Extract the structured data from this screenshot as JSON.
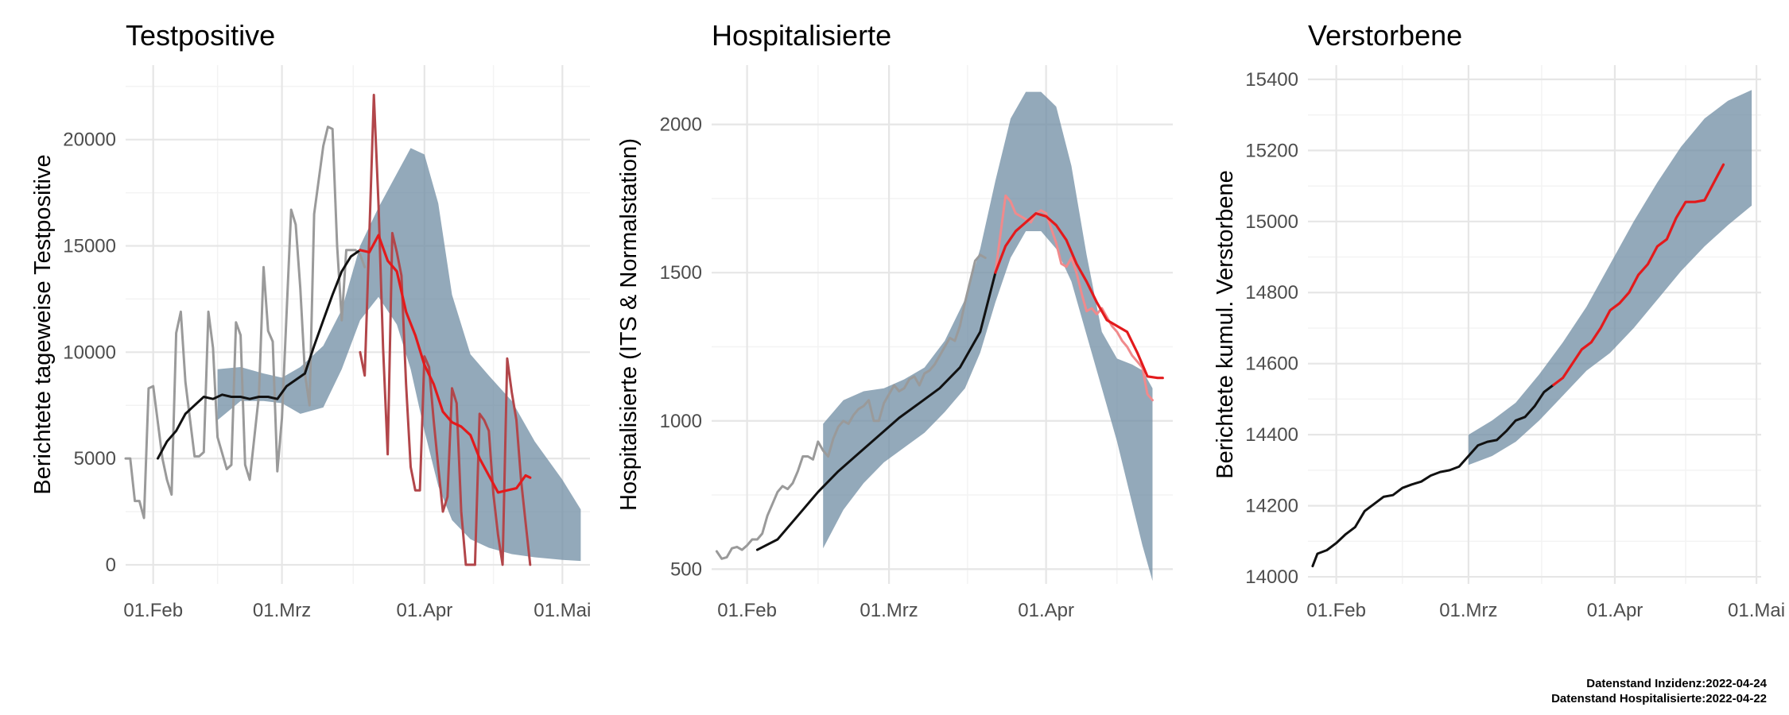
{
  "footnotes": {
    "line1": "Datenstand Inzidenz:2022-04-24",
    "line2": "Datenstand Hospitalisierte:2022-04-22"
  },
  "colors": {
    "band": "#6f8ca3",
    "observed": "#9a9a9a",
    "smoothed": "#111111",
    "nowcast": "#e31a1c",
    "nowcast_raw_1": "#b2464a",
    "nowcast_raw_2": "#f08a8c",
    "grid_major": "#e6e6e6",
    "grid_minor": "#f3f3f3"
  },
  "chart_data": [
    {
      "type": "line",
      "title": "Testpositive",
      "xlabel": "",
      "ylabel": "Berichtete tageweise Testpositive",
      "x_axis": "date",
      "xlim": [
        "2022-01-26",
        "2022-05-07"
      ],
      "ylim": [
        -900,
        23500
      ],
      "xticks": [
        {
          "date": "2022-02-01",
          "label": "01.Feb"
        },
        {
          "date": "2022-03-01",
          "label": "01.Mrz"
        },
        {
          "date": "2022-04-01",
          "label": "01.Apr"
        },
        {
          "date": "2022-05-01",
          "label": "01.Mai"
        }
      ],
      "yticks": [
        0,
        5000,
        10000,
        15000,
        20000
      ],
      "band": {
        "x": [
          "2022-02-15",
          "2022-02-20",
          "2022-02-25",
          "2022-03-01",
          "2022-03-05",
          "2022-03-10",
          "2022-03-14",
          "2022-03-18",
          "2022-03-22",
          "2022-03-26",
          "2022-03-29",
          "2022-04-01",
          "2022-04-04",
          "2022-04-07",
          "2022-04-11",
          "2022-04-15",
          "2022-04-20",
          "2022-04-25",
          "2022-05-01",
          "2022-05-05"
        ],
        "lower": [
          6800,
          7700,
          7700,
          7600,
          7100,
          7400,
          9200,
          11500,
          12600,
          11300,
          9200,
          6300,
          3700,
          2100,
          1200,
          800,
          500,
          350,
          230,
          180
        ],
        "upper": [
          9200,
          9300,
          9000,
          8800,
          9300,
          10300,
          12000,
          15000,
          16800,
          18400,
          19600,
          19300,
          17000,
          12700,
          9900,
          8900,
          7700,
          5800,
          4000,
          2600
        ]
      },
      "series": [
        {
          "role": "observed",
          "x": [
            "2022-01-26",
            "2022-01-27",
            "2022-01-28",
            "2022-01-29",
            "2022-01-30",
            "2022-01-31",
            "2022-02-01",
            "2022-02-03",
            "2022-02-04",
            "2022-02-05",
            "2022-02-06",
            "2022-02-07",
            "2022-02-08",
            "2022-02-10",
            "2022-02-11",
            "2022-02-12",
            "2022-02-13",
            "2022-02-14",
            "2022-02-15",
            "2022-02-17",
            "2022-02-18",
            "2022-02-19",
            "2022-02-20",
            "2022-02-21",
            "2022-02-22",
            "2022-02-24",
            "2022-02-25",
            "2022-02-26",
            "2022-02-27",
            "2022-02-28",
            "2022-03-01",
            "2022-03-03",
            "2022-03-04",
            "2022-03-05",
            "2022-03-06",
            "2022-03-07",
            "2022-03-08",
            "2022-03-10",
            "2022-03-11",
            "2022-03-12",
            "2022-03-13",
            "2022-03-14",
            "2022-03-15",
            "2022-03-17",
            "2022-03-18",
            "2022-03-19"
          ],
          "y": [
            5000,
            5000,
            3000,
            3000,
            2200,
            8300,
            8400,
            5000,
            4000,
            3300,
            10900,
            11900,
            8600,
            5100,
            5100,
            5300,
            11900,
            10200,
            6000,
            4500,
            4700,
            11400,
            10800,
            4700,
            4000,
            8000,
            14000,
            11000,
            10500,
            4400,
            6900,
            16700,
            16000,
            13000,
            9000,
            7500,
            16500,
            19700,
            20600,
            20500,
            15000,
            11500,
            14800,
            14800,
            14600,
            14000
          ]
        },
        {
          "role": "smoothed",
          "x": [
            "2022-02-02",
            "2022-02-04",
            "2022-02-06",
            "2022-02-08",
            "2022-02-10",
            "2022-02-12",
            "2022-02-14",
            "2022-02-16",
            "2022-02-18",
            "2022-02-20",
            "2022-02-22",
            "2022-02-24",
            "2022-02-26",
            "2022-02-28",
            "2022-03-02",
            "2022-03-04",
            "2022-03-06",
            "2022-03-08",
            "2022-03-10",
            "2022-03-12",
            "2022-03-14",
            "2022-03-16",
            "2022-03-18"
          ],
          "y": [
            5000,
            5800,
            6300,
            7100,
            7500,
            7900,
            7800,
            8000,
            7900,
            7900,
            7800,
            7900,
            7900,
            7800,
            8400,
            8700,
            9000,
            10300,
            11500,
            12700,
            13800,
            14500,
            14800
          ]
        },
        {
          "role": "nowcast_raw_1",
          "x": [
            "2022-03-18",
            "2022-03-19",
            "2022-03-20",
            "2022-03-21",
            "2022-03-22",
            "2022-03-23",
            "2022-03-24",
            "2022-03-25",
            "2022-03-26",
            "2022-03-27",
            "2022-03-28",
            "2022-03-29",
            "2022-03-30",
            "2022-03-31",
            "2022-04-01",
            "2022-04-02",
            "2022-04-03",
            "2022-04-04",
            "2022-04-05",
            "2022-04-06",
            "2022-04-07",
            "2022-04-08",
            "2022-04-09",
            "2022-04-10",
            "2022-04-11",
            "2022-04-12",
            "2022-04-13",
            "2022-04-14",
            "2022-04-15",
            "2022-04-16",
            "2022-04-17",
            "2022-04-18",
            "2022-04-19",
            "2022-04-20",
            "2022-04-21",
            "2022-04-22",
            "2022-04-23",
            "2022-04-24"
          ],
          "y": [
            10000,
            8900,
            15500,
            22100,
            17000,
            10200,
            5200,
            15600,
            14700,
            13600,
            8500,
            4600,
            3500,
            3500,
            9800,
            9300,
            6800,
            4600,
            2500,
            3200,
            8300,
            7600,
            2500,
            0,
            0,
            0,
            7100,
            6800,
            6300,
            3300,
            1400,
            0,
            9700,
            8100,
            6800,
            4000,
            2000,
            0
          ]
        },
        {
          "role": "nowcast",
          "x": [
            "2022-03-18",
            "2022-03-20",
            "2022-03-22",
            "2022-03-24",
            "2022-03-26",
            "2022-03-28",
            "2022-03-30",
            "2022-04-01",
            "2022-04-03",
            "2022-04-05",
            "2022-04-07",
            "2022-04-09",
            "2022-04-11",
            "2022-04-13",
            "2022-04-15",
            "2022-04-17",
            "2022-04-19",
            "2022-04-21",
            "2022-04-23",
            "2022-04-24"
          ],
          "y": [
            14800,
            14700,
            15500,
            14300,
            13800,
            11900,
            10800,
            9400,
            8500,
            7200,
            6700,
            6500,
            6100,
            5000,
            4200,
            3400,
            3500,
            3600,
            4200,
            4100
          ]
        }
      ]
    },
    {
      "type": "line",
      "title": "Hospitalisierte",
      "xlabel": "",
      "ylabel": "Hospitalisierte (ITS & Normalstation)",
      "x_axis": "date",
      "xlim": [
        "2022-01-25",
        "2022-04-26"
      ],
      "ylim": [
        450,
        2200
      ],
      "xticks": [
        {
          "date": "2022-02-01",
          "label": "01.Feb"
        },
        {
          "date": "2022-03-01",
          "label": "01.Mrz"
        },
        {
          "date": "2022-04-01",
          "label": "01.Apr"
        }
      ],
      "yticks": [
        500,
        1000,
        1500,
        2000
      ],
      "band": {
        "x": [
          "2022-02-16",
          "2022-02-20",
          "2022-02-24",
          "2022-02-28",
          "2022-03-04",
          "2022-03-08",
          "2022-03-12",
          "2022-03-16",
          "2022-03-19",
          "2022-03-22",
          "2022-03-25",
          "2022-03-28",
          "2022-03-31",
          "2022-04-03",
          "2022-04-06",
          "2022-04-09",
          "2022-04-12",
          "2022-04-15",
          "2022-04-18",
          "2022-04-20",
          "2022-04-22"
        ],
        "lower": [
          570,
          700,
          790,
          860,
          910,
          960,
          1030,
          1110,
          1230,
          1400,
          1550,
          1640,
          1640,
          1580,
          1470,
          1290,
          1110,
          930,
          720,
          580,
          460
        ],
        "upper": [
          990,
          1070,
          1100,
          1110,
          1140,
          1180,
          1270,
          1410,
          1580,
          1810,
          2020,
          2110,
          2110,
          2060,
          1860,
          1560,
          1300,
          1210,
          1190,
          1170,
          1110
        ]
      },
      "series": [
        {
          "role": "observed",
          "x": [
            "2022-01-26",
            "2022-01-27",
            "2022-01-28",
            "2022-01-29",
            "2022-01-30",
            "2022-01-31",
            "2022-02-01",
            "2022-02-02",
            "2022-02-03",
            "2022-02-04",
            "2022-02-05",
            "2022-02-06",
            "2022-02-07",
            "2022-02-08",
            "2022-02-09",
            "2022-02-10",
            "2022-02-11",
            "2022-02-12",
            "2022-02-13",
            "2022-02-14",
            "2022-02-15",
            "2022-02-16",
            "2022-02-17",
            "2022-02-18",
            "2022-02-19",
            "2022-02-20",
            "2022-02-21",
            "2022-02-22",
            "2022-02-23",
            "2022-02-24",
            "2022-02-25",
            "2022-02-26",
            "2022-02-27",
            "2022-02-28",
            "2022-03-01",
            "2022-03-02",
            "2022-03-03",
            "2022-03-04",
            "2022-03-05",
            "2022-03-06",
            "2022-03-07",
            "2022-03-08",
            "2022-03-09",
            "2022-03-10",
            "2022-03-11",
            "2022-03-12",
            "2022-03-13",
            "2022-03-14",
            "2022-03-15",
            "2022-03-16",
            "2022-03-17",
            "2022-03-18",
            "2022-03-19",
            "2022-03-20"
          ],
          "y": [
            560,
            535,
            540,
            570,
            575,
            565,
            580,
            600,
            600,
            620,
            680,
            720,
            760,
            780,
            770,
            790,
            830,
            880,
            880,
            870,
            930,
            900,
            880,
            940,
            980,
            1000,
            990,
            1020,
            1040,
            1050,
            1070,
            1000,
            1000,
            1060,
            1090,
            1120,
            1100,
            1110,
            1140,
            1150,
            1120,
            1160,
            1170,
            1190,
            1220,
            1250,
            1280,
            1270,
            1320,
            1400,
            1470,
            1540,
            1560,
            1550
          ]
        },
        {
          "role": "smoothed",
          "x": [
            "2022-02-03",
            "2022-02-07",
            "2022-02-11",
            "2022-02-15",
            "2022-02-19",
            "2022-02-23",
            "2022-02-27",
            "2022-03-03",
            "2022-03-07",
            "2022-03-11",
            "2022-03-15",
            "2022-03-19",
            "2022-03-22"
          ],
          "y": [
            565,
            600,
            680,
            760,
            830,
            890,
            950,
            1010,
            1060,
            1110,
            1180,
            1300,
            1500
          ]
        },
        {
          "role": "nowcast_raw_2",
          "x": [
            "2022-03-22",
            "2022-03-24",
            "2022-03-25",
            "2022-03-26",
            "2022-03-27",
            "2022-03-28",
            "2022-03-29",
            "2022-03-30",
            "2022-03-31",
            "2022-04-01",
            "2022-04-02",
            "2022-04-03",
            "2022-04-04",
            "2022-04-05",
            "2022-04-06",
            "2022-04-07",
            "2022-04-08",
            "2022-04-09",
            "2022-04-10",
            "2022-04-11",
            "2022-04-12",
            "2022-04-13",
            "2022-04-14",
            "2022-04-15",
            "2022-04-16",
            "2022-04-17",
            "2022-04-18",
            "2022-04-19",
            "2022-04-20",
            "2022-04-21",
            "2022-04-22"
          ],
          "y": [
            1500,
            1760,
            1740,
            1700,
            1690,
            1680,
            1670,
            1700,
            1710,
            1700,
            1650,
            1600,
            1530,
            1520,
            1550,
            1500,
            1430,
            1370,
            1380,
            1360,
            1380,
            1350,
            1320,
            1300,
            1270,
            1250,
            1220,
            1200,
            1180,
            1090,
            1070
          ]
        },
        {
          "role": "nowcast",
          "x": [
            "2022-03-22",
            "2022-03-24",
            "2022-03-26",
            "2022-03-28",
            "2022-03-30",
            "2022-04-01",
            "2022-04-03",
            "2022-04-05",
            "2022-04-07",
            "2022-04-09",
            "2022-04-11",
            "2022-04-13",
            "2022-04-15",
            "2022-04-17",
            "2022-04-19",
            "2022-04-21",
            "2022-04-23",
            "2022-04-24"
          ],
          "y": [
            1500,
            1590,
            1640,
            1670,
            1700,
            1690,
            1660,
            1610,
            1530,
            1470,
            1400,
            1340,
            1320,
            1300,
            1230,
            1150,
            1145,
            1145
          ]
        }
      ]
    },
    {
      "type": "line",
      "title": "Verstorbene",
      "xlabel": "",
      "ylabel": "Berichtete kumul. Verstorbene",
      "x_axis": "date",
      "xlim": [
        "2022-01-26",
        "2022-05-02"
      ],
      "ylim": [
        13980,
        15440
      ],
      "xticks": [
        {
          "date": "2022-02-01",
          "label": "01.Feb"
        },
        {
          "date": "2022-03-01",
          "label": "01.Mrz"
        },
        {
          "date": "2022-04-01",
          "label": "01.Apr"
        },
        {
          "date": "2022-05-01",
          "label": "01.Mai"
        }
      ],
      "yticks": [
        14000,
        14200,
        14400,
        14600,
        14800,
        15000,
        15200,
        15400
      ],
      "band": {
        "x": [
          "2022-03-01",
          "2022-03-06",
          "2022-03-11",
          "2022-03-16",
          "2022-03-21",
          "2022-03-26",
          "2022-03-31",
          "2022-04-05",
          "2022-04-10",
          "2022-04-15",
          "2022-04-20",
          "2022-04-25",
          "2022-04-30"
        ],
        "lower": [
          14315,
          14340,
          14380,
          14440,
          14510,
          14580,
          14630,
          14700,
          14780,
          14860,
          14930,
          14990,
          15045
        ],
        "upper": [
          14400,
          14440,
          14490,
          14570,
          14660,
          14760,
          14880,
          15000,
          15110,
          15210,
          15290,
          15340,
          15370
        ]
      },
      "series": [
        {
          "role": "smoothed",
          "x": [
            "2022-01-27",
            "2022-01-28",
            "2022-01-30",
            "2022-02-01",
            "2022-02-03",
            "2022-02-05",
            "2022-02-07",
            "2022-02-09",
            "2022-02-11",
            "2022-02-13",
            "2022-02-15",
            "2022-02-17",
            "2022-02-19",
            "2022-02-21",
            "2022-02-23",
            "2022-02-25",
            "2022-02-27",
            "2022-03-01",
            "2022-03-03",
            "2022-03-05",
            "2022-03-07",
            "2022-03-09",
            "2022-03-11",
            "2022-03-13",
            "2022-03-15",
            "2022-03-17",
            "2022-03-19"
          ],
          "y": [
            14030,
            14065,
            14075,
            14095,
            14120,
            14140,
            14185,
            14205,
            14225,
            14230,
            14250,
            14260,
            14268,
            14285,
            14295,
            14300,
            14310,
            14340,
            14370,
            14380,
            14385,
            14410,
            14440,
            14450,
            14480,
            14520,
            14540
          ]
        },
        {
          "role": "nowcast",
          "x": [
            "2022-03-19",
            "2022-03-21",
            "2022-03-23",
            "2022-03-25",
            "2022-03-27",
            "2022-03-29",
            "2022-03-31",
            "2022-04-02",
            "2022-04-04",
            "2022-04-06",
            "2022-04-08",
            "2022-04-10",
            "2022-04-12",
            "2022-04-14",
            "2022-04-16",
            "2022-04-18",
            "2022-04-20",
            "2022-04-22",
            "2022-04-24"
          ],
          "y": [
            14540,
            14560,
            14600,
            14640,
            14660,
            14700,
            14750,
            14770,
            14800,
            14850,
            14880,
            14930,
            14950,
            15010,
            15055,
            15055,
            15060,
            15110,
            15160
          ]
        }
      ]
    }
  ]
}
